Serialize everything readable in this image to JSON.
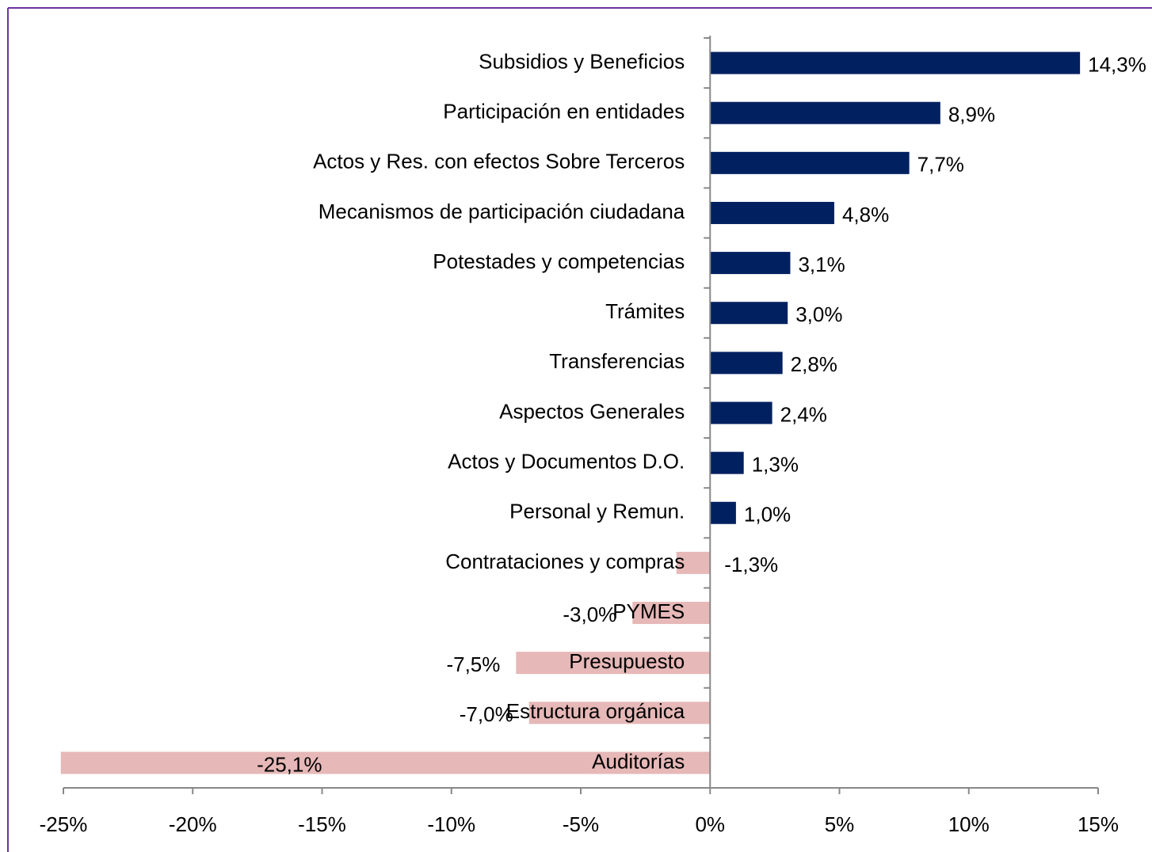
{
  "chart_data": {
    "type": "bar",
    "orientation": "horizontal",
    "categories": [
      "Subsidios y Beneficios",
      "Participación en entidades",
      "Actos y Res. con efectos Sobre Terceros",
      "Mecanismos de participación ciudadana",
      "Potestades y competencias",
      "Trámites",
      "Transferencias",
      "Aspectos Generales",
      "Actos y Documentos D.O.",
      "Personal y Remun.",
      "Contrataciones y compras",
      "PYMES",
      "Presupuesto",
      "Estructura orgánica",
      "Auditorías"
    ],
    "values": [
      14.3,
      8.9,
      7.7,
      4.8,
      3.1,
      3.0,
      2.8,
      2.4,
      1.3,
      1.0,
      -1.3,
      -3.0,
      -7.5,
      -7.0,
      -25.1
    ],
    "value_labels": [
      "14,3%",
      "8,9%",
      "7,7%",
      "4,8%",
      "3,1%",
      "3,0%",
      "2,8%",
      "2,4%",
      "1,3%",
      "1,0%",
      "-1,3%",
      "-3,0%",
      "-7,5%",
      "-7,0%",
      "-25,1%"
    ],
    "positive_color": "#002060",
    "negative_color": "#e6b8b7",
    "xlim": [
      -25,
      15
    ],
    "xticks": [
      {
        "value": -25,
        "label": "-25%"
      },
      {
        "value": -20,
        "label": "-20%"
      },
      {
        "value": -15,
        "label": "-15%"
      },
      {
        "value": -10,
        "label": "-10%"
      },
      {
        "value": -5,
        "label": "-5%"
      },
      {
        "value": 0,
        "label": "0%"
      },
      {
        "value": 5,
        "label": "5%"
      },
      {
        "value": 10,
        "label": "10%"
      },
      {
        "value": 15,
        "label": "15%"
      }
    ],
    "grid": false
  }
}
